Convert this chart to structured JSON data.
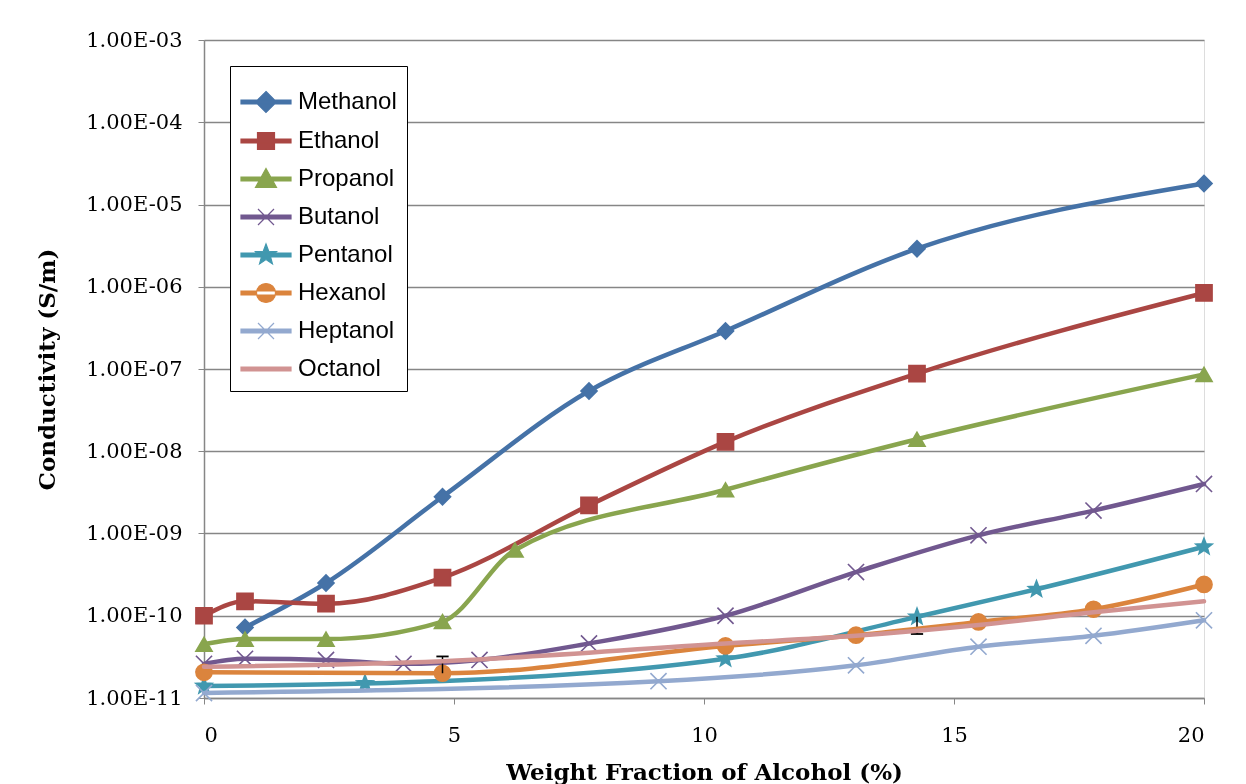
{
  "chart_data": {
    "type": "line",
    "xlabel": "Weight Fraction of Alcohol (%)",
    "ylabel": "Conductivity (S/m)",
    "xlim": [
      0,
      20
    ],
    "xticks": [
      0,
      5,
      10,
      15,
      20
    ],
    "ylim": [
      1e-11,
      0.001
    ],
    "yticks": [
      {
        "value": 1e-11,
        "label": "1.00E-11"
      },
      {
        "value": 1e-10,
        "label": "1.00E-10"
      },
      {
        "value": 1e-09,
        "label": "1.00E-09"
      },
      {
        "value": 1e-08,
        "label": "1.00E-08"
      },
      {
        "value": 1e-07,
        "label": "1.00E-07"
      },
      {
        "value": 1e-06,
        "label": "1.00E-06"
      },
      {
        "value": 1e-05,
        "label": "1.00E-05"
      },
      {
        "value": 0.0001,
        "label": "1.00E-04"
      },
      {
        "value": 0.001,
        "label": "1.00E-03"
      }
    ],
    "log": "y",
    "grid": "y",
    "legend": "top left",
    "line_style": "solid",
    "series": [
      {
        "name": "Methanol",
        "color": "#4572a7",
        "marker": "diamond",
        "x": [
          0.82,
          2.44,
          4.77,
          7.7,
          10.43,
          14.26,
          20
        ],
        "values": [
          7.2e-11,
          2.5e-10,
          2.8e-09,
          5.4e-08,
          2.9e-07,
          2.9e-06,
          1.8e-05
        ]
      },
      {
        "name": "Ethanol",
        "color": "#aa4643",
        "marker": "square",
        "x": [
          0,
          0.82,
          2.44,
          4.77,
          7.7,
          10.43,
          14.26,
          20
        ],
        "values": [
          1e-10,
          1.5e-10,
          1.4e-10,
          2.9e-10,
          2.2e-09,
          1.3e-08,
          8.8e-08,
          8.4e-07
        ]
      },
      {
        "name": "Propanol",
        "color": "#89a54e",
        "marker": "triangle",
        "x": [
          0,
          0.82,
          2.44,
          4.77,
          6.22,
          10.43,
          14.26,
          20
        ],
        "values": [
          4.5e-11,
          5.2e-11,
          5.2e-11,
          8.5e-11,
          6.3e-10,
          3.4e-09,
          1.4e-08,
          8.6e-08
        ]
      },
      {
        "name": "Butanol",
        "color": "#71588f",
        "marker": "cross",
        "x": [
          0,
          0.82,
          2.44,
          3.99,
          5.51,
          7.7,
          10.43,
          13.04,
          15.49,
          17.79,
          20
        ],
        "values": [
          2.6e-11,
          3e-11,
          2.9e-11,
          2.6e-11,
          2.9e-11,
          4.6e-11,
          1e-10,
          3.4e-10,
          9.5e-10,
          1.9e-09,
          4e-09
        ]
      },
      {
        "name": "Pentanol",
        "color": "#4198af",
        "marker": "star",
        "x": [
          0,
          3.22,
          10.43,
          14.26,
          16.65,
          20
        ],
        "values": [
          1.4e-11,
          1.5e-11,
          3e-11,
          9.7e-11,
          2.1e-10,
          6.9e-10
        ],
        "errors": [
          null,
          null,
          null,
          [
            6e-11,
            9.7e-11
          ],
          null,
          null
        ]
      },
      {
        "name": "Hexanol",
        "color": "#db843d",
        "marker": "circle",
        "x": [
          0,
          4.77,
          10.43,
          13.04,
          15.49,
          17.79,
          20
        ],
        "values": [
          2.05e-11,
          2e-11,
          4.3e-11,
          5.8e-11,
          8.4e-11,
          1.2e-10,
          2.4e-10
        ],
        "errors": [
          null,
          [
            2e-11,
            3.2e-11
          ],
          null,
          null,
          null,
          null,
          null
        ]
      },
      {
        "name": "Heptanol",
        "color": "#93a9cf",
        "marker": "cross",
        "x": [
          0,
          9.09,
          13.04,
          15.49,
          17.79,
          20
        ],
        "values": [
          1.15e-11,
          1.6e-11,
          2.5e-11,
          4.2e-11,
          5.7e-11,
          8.8e-11
        ]
      },
      {
        "name": "Octanol",
        "color": "#d19392",
        "marker": "none",
        "x": [
          0,
          4.77,
          10.43,
          13.04,
          15.49,
          17.79,
          20
        ],
        "values": [
          2.4e-11,
          2.8e-11,
          4.6e-11,
          5.7e-11,
          7.7e-11,
          1.1e-10,
          1.5e-10
        ]
      }
    ]
  }
}
